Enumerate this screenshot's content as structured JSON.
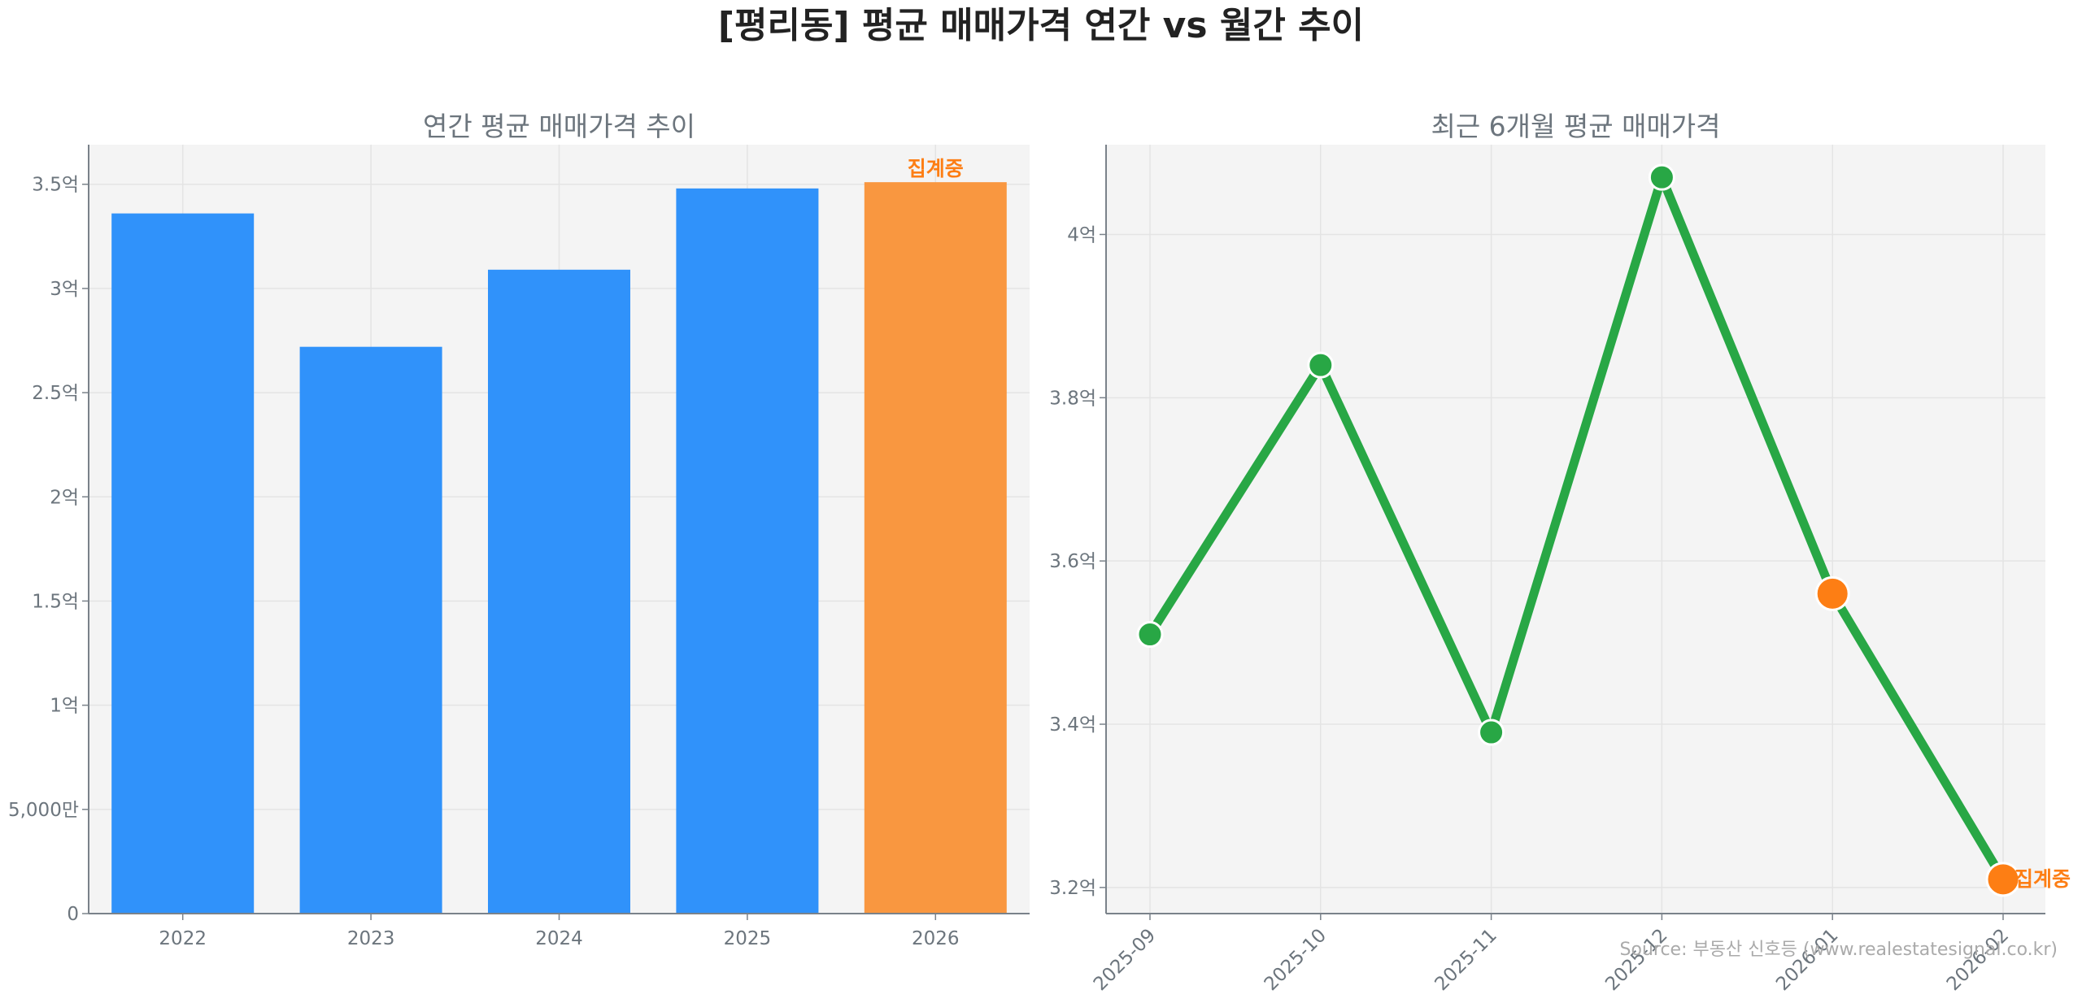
{
  "title": "[평리동] 평균 매매가격 연간 vs 월간 추이",
  "source": "Source: 부동산 신호등 (www.realestatesignal.co.kr)",
  "colors": {
    "bar": "#3092fa",
    "bar_partial": "#f99740",
    "line": "#28a745",
    "partial_marker": "#fd7e14",
    "partial_label": "#fd7e14",
    "panel": "#f4f4f4"
  },
  "chart_data": [
    {
      "type": "bar",
      "title": "연간 평균 매매가격 추이",
      "categories": [
        "2022",
        "2023",
        "2024",
        "2025",
        "2026"
      ],
      "values": [
        3.36,
        2.72,
        3.09,
        3.48,
        3.51
      ],
      "unit": "억",
      "ylim": [
        0,
        3.69
      ],
      "yticks": [
        0,
        0.5,
        1,
        1.5,
        2,
        2.5,
        3,
        3.5
      ],
      "ytick_labels": [
        "0",
        "5,000만",
        "1억",
        "1.5억",
        "2억",
        "2.5억",
        "3억",
        "3.5억"
      ],
      "partial_index": 4,
      "partial_label": "집계중",
      "grid": true
    },
    {
      "type": "line",
      "title": "최근 6개월 평균 매매가격",
      "categories": [
        "2025-09",
        "2025-10",
        "2025-11",
        "2025-12",
        "2026-01",
        "2026-02"
      ],
      "values": [
        3.51,
        3.84,
        3.39,
        4.07,
        3.56,
        3.21
      ],
      "unit": "억",
      "ylim": [
        3.168,
        4.11
      ],
      "yticks": [
        3.2,
        3.4,
        3.6,
        3.8,
        4.0
      ],
      "ytick_labels": [
        "3.2억",
        "3.4억",
        "3.6억",
        "3.8억",
        "4억"
      ],
      "partial_indices": [
        4,
        5
      ],
      "partial_label": "집계중",
      "grid": true
    }
  ]
}
